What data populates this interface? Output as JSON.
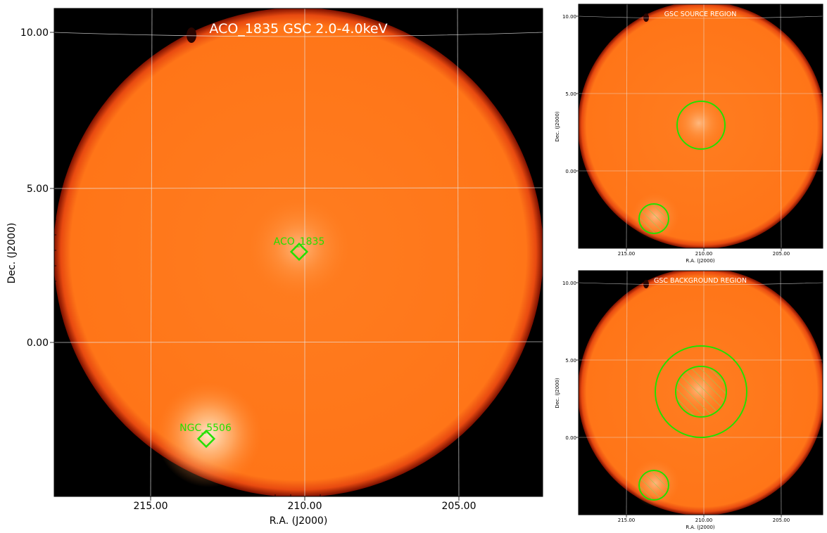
{
  "main_panel": {
    "title": "ACO_1835 GSC 2.0-4.0keV",
    "xlabel": "R.A. (J2000)",
    "ylabel": "Dec. (J2000)",
    "x_ticks": [
      "215.00",
      "210.00",
      "205.00"
    ],
    "y_ticks": [
      "10.00",
      "5.00",
      "0.00"
    ],
    "sources": [
      {
        "label": "ACO_1835"
      },
      {
        "label": "NGC_5506"
      }
    ]
  },
  "source_panel": {
    "title": "GSC SOURCE REGION",
    "xlabel": "R.A. (J2000)",
    "ylabel": "Dec. (J2000)",
    "x_ticks": [
      "215.00",
      "210.00",
      "205.00"
    ],
    "y_ticks": [
      "10.00",
      "5.00",
      "0.00"
    ]
  },
  "background_panel": {
    "title": "GSC BACKGROUND REGION",
    "xlabel": "R.A. (J2000)",
    "ylabel": "Dec. (J2000)",
    "x_ticks": [
      "215.00",
      "210.00",
      "205.00"
    ],
    "y_ticks": [
      "10.00",
      "5.00",
      "0.00"
    ]
  },
  "colors": {
    "sky": "#ff7a1a",
    "region": "#22e000",
    "frame": "#000000"
  }
}
